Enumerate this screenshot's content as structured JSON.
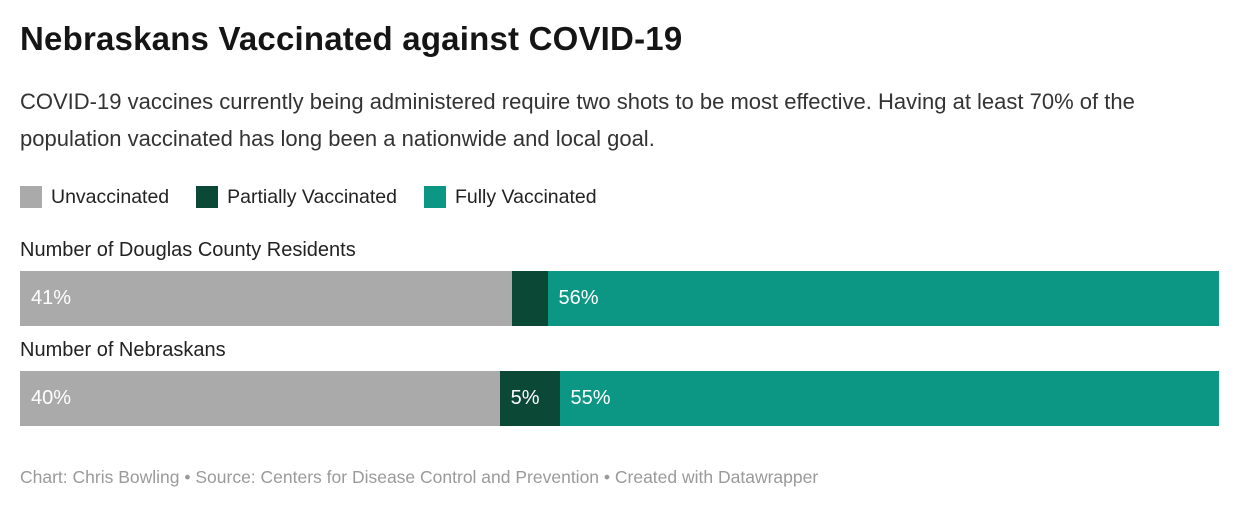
{
  "title": "Nebraskans Vaccinated against COVID-19",
  "description": "COVID-19 vaccines currently being administered require two shots to be most effective. Having at least 70% of the population vaccinated has long been a nationwide and local goal.",
  "colors": {
    "unvaccinated": "#aaaaaa",
    "partially_vaccinated": "#0c4836",
    "fully_vaccinated": "#0c9784",
    "bar_value_text": "#ffffff"
  },
  "legend": [
    {
      "label": "Unvaccinated",
      "color": "#aaaaaa"
    },
    {
      "label": "Partially Vaccinated",
      "color": "#0c4836"
    },
    {
      "label": "Fully Vaccinated",
      "color": "#0c9784"
    }
  ],
  "chart_data": {
    "type": "bar",
    "stacked": true,
    "orientation": "horizontal",
    "unit": "%",
    "xlim": [
      0,
      100
    ],
    "grid": false,
    "categories": [
      "Number of Douglas County Residents",
      "Number of Nebraskans"
    ],
    "series": [
      {
        "name": "Unvaccinated",
        "color": "#aaaaaa",
        "values": [
          41,
          40
        ]
      },
      {
        "name": "Partially Vaccinated",
        "color": "#0c4836",
        "values": [
          3,
          5
        ]
      },
      {
        "name": "Fully Vaccinated",
        "color": "#0c9784",
        "values": [
          56,
          55
        ]
      }
    ],
    "bar_labels": [
      [
        "41%",
        "",
        "56%"
      ],
      [
        "40%",
        "5%",
        "55%"
      ]
    ]
  },
  "footer": "Chart: Chris Bowling • Source: Centers for Disease Control and Prevention • Created with Datawrapper"
}
